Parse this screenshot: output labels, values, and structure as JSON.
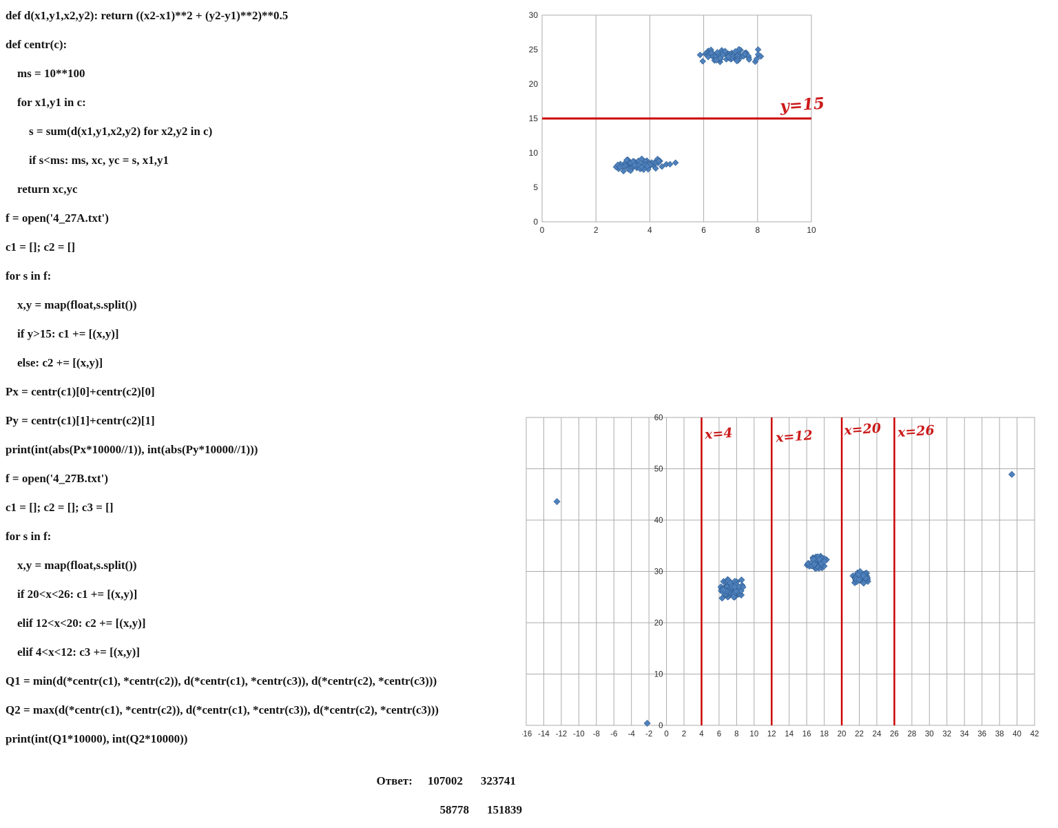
{
  "code": {
    "lines": [
      {
        "indent": 0,
        "text": "def d(x1,y1,x2,y2): return ((x2-x1)**2 + (y2-y1)**2)**0.5"
      },
      {
        "indent": 0,
        "text": "def centr(c):"
      },
      {
        "indent": 1,
        "text": "ms = 10**100"
      },
      {
        "indent": 1,
        "text": "for x1,y1 in c:"
      },
      {
        "indent": 2,
        "text": "s = sum(d(x1,y1,x2,y2) for x2,y2 in c)"
      },
      {
        "indent": 2,
        "text": "if s<ms: ms, xc, yc = s, x1,y1"
      },
      {
        "indent": 1,
        "text": "return xc,yc"
      },
      {
        "indent": 0,
        "text": "f = open('4_27A.txt')"
      },
      {
        "indent": 0,
        "text": "c1 = []; c2 = []"
      },
      {
        "indent": 0,
        "text": "for s in f:"
      },
      {
        "indent": 1,
        "text": "x,y = map(float,s.split())"
      },
      {
        "indent": 1,
        "text": "if y>15: c1 += [(x,y)]"
      },
      {
        "indent": 1,
        "text": "else: c2 += [(x,y)]"
      },
      {
        "indent": 0,
        "text": "Px = centr(c1)[0]+centr(c2)[0]"
      },
      {
        "indent": 0,
        "text": "Py = centr(c1)[1]+centr(c2)[1]"
      },
      {
        "indent": 0,
        "text": "print(int(abs(Px*10000//1)), int(abs(Py*10000//1)))"
      },
      {
        "indent": 0,
        "text": "f = open('4_27B.txt')"
      },
      {
        "indent": 0,
        "text": "c1 = []; c2 = []; c3 = []"
      },
      {
        "indent": 0,
        "text": "for s in f:"
      },
      {
        "indent": 1,
        "text": "x,y = map(float,s.split())"
      },
      {
        "indent": 1,
        "text": "if 20<x<26: c1 += [(x,y)]"
      },
      {
        "indent": 1,
        "text": "elif 12<x<20: c2 += [(x,y)]"
      },
      {
        "indent": 1,
        "text": "elif 4<x<12: c3 += [(x,y)]"
      },
      {
        "indent": 0,
        "text": "Q1 = min(d(*centr(c1), *centr(c2)), d(*centr(c1), *centr(c3)), d(*centr(c2), *centr(c3)))"
      },
      {
        "indent": 0,
        "text": "Q2 = max(d(*centr(c1), *centr(c2)), d(*centr(c1), *centr(c3)), d(*centr(c2), *centr(c3)))"
      },
      {
        "indent": 0,
        "text": "print(int(Q1*10000), int(Q2*10000))"
      }
    ]
  },
  "answers": {
    "label": "Ответ:",
    "rows": [
      [
        "107002",
        "323741"
      ],
      [
        "58778",
        "151839"
      ]
    ]
  },
  "colors": {
    "marker": "#4F81BD",
    "marker_edge": "#2F5E91",
    "grid": "#ABABAB",
    "tick_text": "#2B2B2B",
    "red_line": "#CC0000",
    "handwriting": "#CC1A1A",
    "code_text": "#151515"
  },
  "chart_data": [
    {
      "type": "scatter",
      "title": "",
      "xlabel": "",
      "ylabel": "",
      "xlim": [
        0,
        10
      ],
      "ylim": [
        0,
        30
      ],
      "xticks": [
        0,
        2,
        4,
        6,
        8,
        10
      ],
      "yticks": [
        0,
        5,
        10,
        15,
        20,
        25,
        30
      ],
      "grid": {
        "v": true,
        "h": false
      },
      "legend": "none",
      "marker": "diamond",
      "series": [
        {
          "name": "cluster-upper",
          "center": [
            7.0,
            24.2
          ],
          "spread": [
            1.15,
            0.85
          ],
          "count": 70,
          "seed": 101
        },
        {
          "name": "cluster-lower",
          "center": [
            3.7,
            8.2
          ],
          "spread": [
            0.95,
            0.8
          ],
          "count": 70,
          "seed": 202
        }
      ],
      "points": [],
      "lines": [
        {
          "type": "h",
          "value": 15,
          "label": "y=15",
          "label_pos": [
            8.85,
            16.0
          ]
        }
      ]
    },
    {
      "type": "scatter",
      "title": "",
      "xlabel": "",
      "ylabel": "",
      "xlim": [
        -16,
        42
      ],
      "ylim": [
        0,
        60
      ],
      "xticks": [
        -16,
        -14,
        -12,
        -10,
        -8,
        -6,
        -4,
        -2,
        0,
        2,
        4,
        6,
        8,
        10,
        12,
        14,
        16,
        18,
        20,
        22,
        24,
        26,
        28,
        30,
        32,
        34,
        36,
        38,
        40,
        42
      ],
      "yticks": [
        0,
        10,
        20,
        30,
        40,
        50,
        60
      ],
      "grid": {
        "v": true,
        "h": true
      },
      "legend": "none",
      "marker": "diamond",
      "series": [
        {
          "name": "cluster-x4-12",
          "center": [
            7.3,
            26.5
          ],
          "spread": [
            1.1,
            1.5
          ],
          "count": 100,
          "seed": 303
        },
        {
          "name": "cluster-x12-20",
          "center": [
            17.0,
            31.7
          ],
          "spread": [
            1.0,
            1.2
          ],
          "count": 60,
          "seed": 404
        },
        {
          "name": "cluster-x20-26",
          "center": [
            22.1,
            28.8
          ],
          "spread": [
            0.95,
            1.1
          ],
          "count": 50,
          "seed": 505
        }
      ],
      "points": [
        [
          -12.5,
          43.6
        ],
        [
          39.4,
          48.9
        ],
        [
          -2.2,
          0.4
        ]
      ],
      "lines": [
        {
          "type": "v",
          "value": 4,
          "label": "x=4",
          "label_pos": [
            4.4,
            55.8
          ]
        },
        {
          "type": "v",
          "value": 12,
          "label": "x=12",
          "label_pos": [
            12.5,
            55.2
          ]
        },
        {
          "type": "v",
          "value": 20,
          "label": "x=20",
          "label_pos": [
            20.3,
            56.6
          ]
        },
        {
          "type": "v",
          "value": 26,
          "label": "x=26",
          "label_pos": [
            26.4,
            56.2
          ]
        }
      ]
    }
  ]
}
